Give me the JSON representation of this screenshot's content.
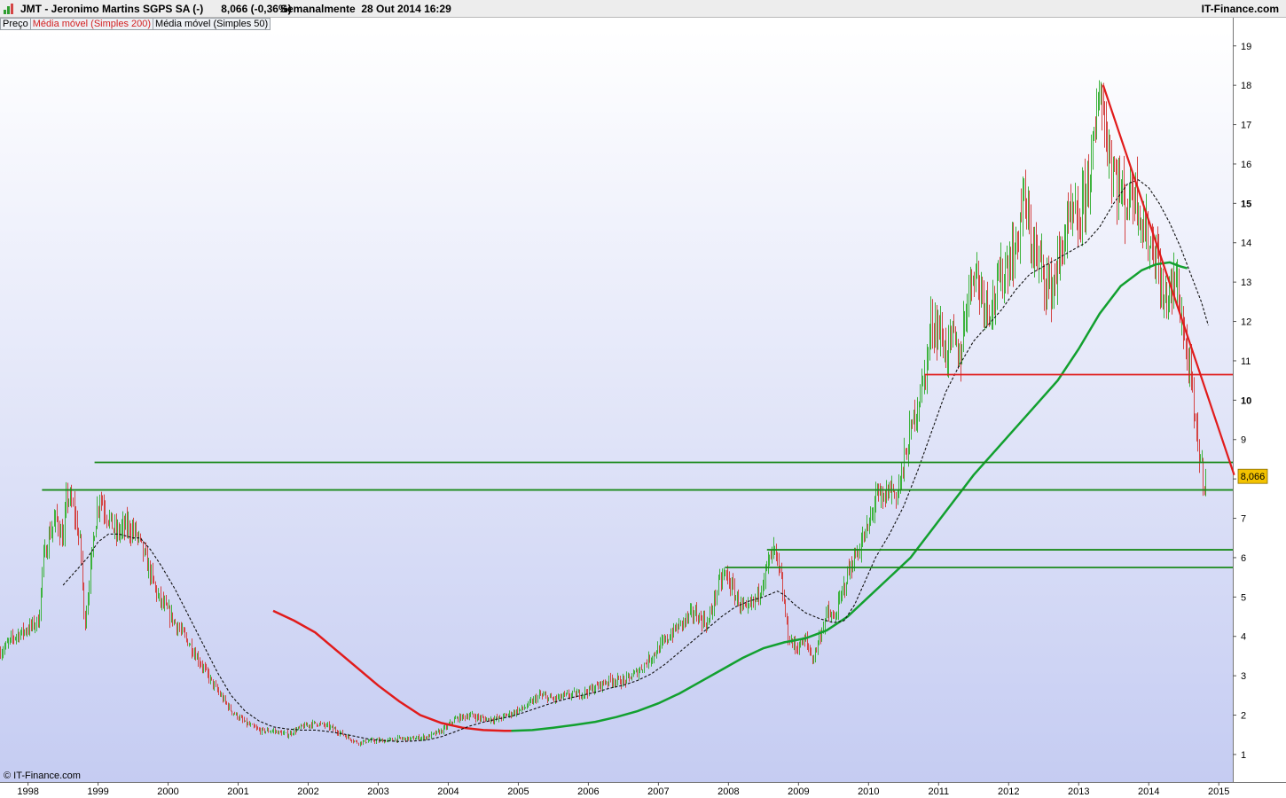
{
  "header": {
    "title": "JMT - Jeronimo Martins SGPS SA (-)      8,066 (-0,36%)",
    "period": "Semanalmente  28 Out 2014 16:29",
    "site": "IT-Finance.com"
  },
  "legend": {
    "price": "Preço",
    "ma200": "Média móvel (Simples 200)",
    "ma50": "Média móvel (Simples 50)"
  },
  "copyright": "© IT-Finance.com",
  "colors": {
    "up": "#3db33d",
    "down": "#d44545",
    "ma200": "#12a02f",
    "ma50": "#111111",
    "trend_red": "#e11b1b",
    "level_green": "#1a8a1a",
    "price_tag": "#f3c200",
    "grad_top": "#ffffff",
    "grad_bottom": "#c5ccf2"
  },
  "chart_data": {
    "type": "candlestick",
    "timeframe": "weekly",
    "x_labels": [
      "1998",
      "1999",
      "2000",
      "2001",
      "2002",
      "2003",
      "2004",
      "2005",
      "2006",
      "2007",
      "2008",
      "2009",
      "2010",
      "2011",
      "2012",
      "2013",
      "2014",
      "2015"
    ],
    "x_range": [
      1997.6,
      2015.2
    ],
    "y_ticks": [
      1,
      2,
      3,
      4,
      5,
      6,
      7,
      8,
      9,
      10,
      11,
      12,
      13,
      14,
      15,
      16,
      17,
      18,
      19
    ],
    "y_bold_ticks": [
      10,
      15
    ],
    "y_range": [
      0.3,
      19.4
    ],
    "last_price": 8.066,
    "last_price_label": "8,066",
    "price_path": [
      [
        1997.6,
        3.6
      ],
      [
        1997.8,
        4.0
      ],
      [
        1998.0,
        4.2
      ],
      [
        1998.15,
        4.4
      ],
      [
        1998.2,
        5.8
      ],
      [
        1998.3,
        6.6
      ],
      [
        1998.4,
        7.0
      ],
      [
        1998.5,
        6.4
      ],
      [
        1998.55,
        7.6
      ],
      [
        1998.65,
        7.2
      ],
      [
        1998.75,
        6.2
      ],
      [
        1998.8,
        4.2
      ],
      [
        1998.95,
        6.8
      ],
      [
        1999.02,
        7.6
      ],
      [
        1999.1,
        7.2
      ],
      [
        1999.25,
        6.6
      ],
      [
        1999.4,
        6.8
      ],
      [
        1999.55,
        6.6
      ],
      [
        1999.7,
        5.8
      ],
      [
        1999.85,
        5.0
      ],
      [
        2000.0,
        4.6
      ],
      [
        2000.15,
        4.2
      ],
      [
        2000.3,
        3.8
      ],
      [
        2000.5,
        3.2
      ],
      [
        2000.7,
        2.6
      ],
      [
        2000.9,
        2.1
      ],
      [
        2001.1,
        1.8
      ],
      [
        2001.3,
        1.6
      ],
      [
        2001.5,
        1.6
      ],
      [
        2001.7,
        1.5
      ],
      [
        2001.9,
        1.7
      ],
      [
        2002.1,
        1.8
      ],
      [
        2002.3,
        1.7
      ],
      [
        2002.5,
        1.5
      ],
      [
        2002.7,
        1.3
      ],
      [
        2002.9,
        1.35
      ],
      [
        2003.1,
        1.35
      ],
      [
        2003.3,
        1.4
      ],
      [
        2003.5,
        1.4
      ],
      [
        2003.7,
        1.45
      ],
      [
        2003.9,
        1.6
      ],
      [
        2004.1,
        1.9
      ],
      [
        2004.3,
        2.0
      ],
      [
        2004.5,
        1.9
      ],
      [
        2004.7,
        1.9
      ],
      [
        2004.9,
        2.05
      ],
      [
        2005.1,
        2.2
      ],
      [
        2005.3,
        2.5
      ],
      [
        2005.5,
        2.4
      ],
      [
        2005.7,
        2.5
      ],
      [
        2005.9,
        2.55
      ],
      [
        2006.1,
        2.7
      ],
      [
        2006.3,
        2.9
      ],
      [
        2006.5,
        2.85
      ],
      [
        2006.7,
        3.1
      ],
      [
        2006.9,
        3.5
      ],
      [
        2007.1,
        3.9
      ],
      [
        2007.3,
        4.3
      ],
      [
        2007.5,
        4.6
      ],
      [
        2007.7,
        4.3
      ],
      [
        2007.85,
        5.3
      ],
      [
        2007.95,
        5.6
      ],
      [
        2008.1,
        5.0
      ],
      [
        2008.25,
        4.6
      ],
      [
        2008.4,
        5.0
      ],
      [
        2008.55,
        5.8
      ],
      [
        2008.65,
        6.2
      ],
      [
        2008.75,
        5.4
      ],
      [
        2008.85,
        4.0
      ],
      [
        2008.95,
        3.7
      ],
      [
        2009.1,
        3.9
      ],
      [
        2009.2,
        3.4
      ],
      [
        2009.3,
        4.0
      ],
      [
        2009.4,
        4.6
      ],
      [
        2009.5,
        4.4
      ],
      [
        2009.6,
        5.0
      ],
      [
        2009.7,
        5.6
      ],
      [
        2009.8,
        6.0
      ],
      [
        2009.9,
        6.4
      ],
      [
        2010.0,
        6.8
      ],
      [
        2010.1,
        7.6
      ],
      [
        2010.2,
        7.4
      ],
      [
        2010.3,
        7.8
      ],
      [
        2010.4,
        7.6
      ],
      [
        2010.5,
        8.4
      ],
      [
        2010.6,
        9.2
      ],
      [
        2010.7,
        10.0
      ],
      [
        2010.8,
        10.6
      ],
      [
        2010.9,
        12.0
      ],
      [
        2011.0,
        11.8
      ],
      [
        2011.1,
        11.2
      ],
      [
        2011.2,
        11.6
      ],
      [
        2011.3,
        11.0
      ],
      [
        2011.4,
        12.6
      ],
      [
        2011.5,
        13.4
      ],
      [
        2011.6,
        12.8
      ],
      [
        2011.7,
        12.4
      ],
      [
        2011.8,
        12.6
      ],
      [
        2011.9,
        13.2
      ],
      [
        2012.0,
        13.6
      ],
      [
        2012.1,
        13.8
      ],
      [
        2012.2,
        15.2
      ],
      [
        2012.3,
        14.2
      ],
      [
        2012.4,
        13.6
      ],
      [
        2012.5,
        13.2
      ],
      [
        2012.6,
        12.8
      ],
      [
        2012.7,
        13.4
      ],
      [
        2012.8,
        14.2
      ],
      [
        2012.9,
        14.6
      ],
      [
        2013.0,
        14.4
      ],
      [
        2013.1,
        15.4
      ],
      [
        2013.2,
        16.2
      ],
      [
        2013.25,
        17.0
      ],
      [
        2013.3,
        18.2
      ],
      [
        2013.38,
        16.8
      ],
      [
        2013.5,
        15.8
      ],
      [
        2013.65,
        15.0
      ],
      [
        2013.8,
        15.4
      ],
      [
        2013.95,
        14.2
      ],
      [
        2014.1,
        13.8
      ],
      [
        2014.2,
        12.4
      ],
      [
        2014.3,
        12.8
      ],
      [
        2014.4,
        13.0
      ],
      [
        2014.5,
        11.6
      ],
      [
        2014.6,
        10.4
      ],
      [
        2014.65,
        9.4
      ],
      [
        2014.72,
        8.6
      ],
      [
        2014.78,
        8.0
      ],
      [
        2014.82,
        8.066
      ]
    ],
    "ma50": [
      [
        1998.5,
        5.3
      ],
      [
        1998.7,
        5.7
      ],
      [
        1998.85,
        6.0
      ],
      [
        1999.0,
        6.4
      ],
      [
        1999.15,
        6.6
      ],
      [
        1999.3,
        6.6
      ],
      [
        1999.5,
        6.5
      ],
      [
        1999.6,
        6.5
      ],
      [
        1999.75,
        6.2
      ],
      [
        1999.9,
        5.8
      ],
      [
        2000.1,
        5.2
      ],
      [
        2000.3,
        4.5
      ],
      [
        2000.5,
        3.8
      ],
      [
        2000.7,
        3.1
      ],
      [
        2000.9,
        2.5
      ],
      [
        2001.1,
        2.1
      ],
      [
        2001.3,
        1.85
      ],
      [
        2001.5,
        1.7
      ],
      [
        2001.7,
        1.65
      ],
      [
        2001.9,
        1.62
      ],
      [
        2002.1,
        1.62
      ],
      [
        2002.3,
        1.58
      ],
      [
        2002.5,
        1.52
      ],
      [
        2002.7,
        1.45
      ],
      [
        2002.9,
        1.38
      ],
      [
        2003.1,
        1.35
      ],
      [
        2003.3,
        1.33
      ],
      [
        2003.5,
        1.34
      ],
      [
        2003.7,
        1.37
      ],
      [
        2003.9,
        1.45
      ],
      [
        2004.1,
        1.58
      ],
      [
        2004.3,
        1.72
      ],
      [
        2004.5,
        1.82
      ],
      [
        2004.7,
        1.9
      ],
      [
        2004.9,
        1.97
      ],
      [
        2005.1,
        2.08
      ],
      [
        2005.3,
        2.2
      ],
      [
        2005.5,
        2.32
      ],
      [
        2005.7,
        2.42
      ],
      [
        2005.9,
        2.5
      ],
      [
        2006.1,
        2.58
      ],
      [
        2006.3,
        2.68
      ],
      [
        2006.5,
        2.76
      ],
      [
        2006.7,
        2.88
      ],
      [
        2006.9,
        3.05
      ],
      [
        2007.1,
        3.3
      ],
      [
        2007.3,
        3.6
      ],
      [
        2007.5,
        3.9
      ],
      [
        2007.7,
        4.2
      ],
      [
        2007.9,
        4.5
      ],
      [
        2008.1,
        4.75
      ],
      [
        2008.3,
        4.9
      ],
      [
        2008.5,
        5.0
      ],
      [
        2008.7,
        5.15
      ],
      [
        2008.8,
        5.05
      ],
      [
        2008.95,
        4.8
      ],
      [
        2009.1,
        4.6
      ],
      [
        2009.3,
        4.45
      ],
      [
        2009.5,
        4.35
      ],
      [
        2009.65,
        4.4
      ],
      [
        2009.8,
        4.8
      ],
      [
        2009.95,
        5.4
      ],
      [
        2010.1,
        6.0
      ],
      [
        2010.3,
        6.6
      ],
      [
        2010.5,
        7.3
      ],
      [
        2010.7,
        8.2
      ],
      [
        2010.9,
        9.2
      ],
      [
        2011.1,
        10.2
      ],
      [
        2011.3,
        10.9
      ],
      [
        2011.5,
        11.5
      ],
      [
        2011.7,
        11.9
      ],
      [
        2011.9,
        12.3
      ],
      [
        2012.1,
        12.8
      ],
      [
        2012.3,
        13.2
      ],
      [
        2012.5,
        13.4
      ],
      [
        2012.7,
        13.6
      ],
      [
        2012.9,
        13.8
      ],
      [
        2013.1,
        14.0
      ],
      [
        2013.3,
        14.4
      ],
      [
        2013.5,
        15.0
      ],
      [
        2013.7,
        15.5
      ],
      [
        2013.85,
        15.6
      ],
      [
        2014.0,
        15.4
      ],
      [
        2014.15,
        15.0
      ],
      [
        2014.3,
        14.5
      ],
      [
        2014.45,
        13.9
      ],
      [
        2014.6,
        13.2
      ],
      [
        2014.75,
        12.5
      ],
      [
        2014.85,
        11.9
      ]
    ],
    "ma200": [
      [
        2004.9,
        1.6
      ],
      [
        2005.2,
        1.62
      ],
      [
        2005.5,
        1.68
      ],
      [
        2005.8,
        1.75
      ],
      [
        2006.1,
        1.83
      ],
      [
        2006.4,
        1.95
      ],
      [
        2006.7,
        2.1
      ],
      [
        2007.0,
        2.3
      ],
      [
        2007.3,
        2.55
      ],
      [
        2007.6,
        2.85
      ],
      [
        2007.9,
        3.15
      ],
      [
        2008.2,
        3.45
      ],
      [
        2008.5,
        3.7
      ],
      [
        2008.8,
        3.85
      ],
      [
        2009.1,
        3.95
      ],
      [
        2009.4,
        4.15
      ],
      [
        2009.7,
        4.5
      ],
      [
        2010.0,
        5.0
      ],
      [
        2010.3,
        5.5
      ],
      [
        2010.6,
        6.0
      ],
      [
        2010.9,
        6.7
      ],
      [
        2011.2,
        7.4
      ],
      [
        2011.5,
        8.1
      ],
      [
        2011.8,
        8.7
      ],
      [
        2012.1,
        9.3
      ],
      [
        2012.4,
        9.9
      ],
      [
        2012.7,
        10.5
      ],
      [
        2013.0,
        11.3
      ],
      [
        2013.3,
        12.2
      ],
      [
        2013.6,
        12.9
      ],
      [
        2013.9,
        13.3
      ],
      [
        2014.1,
        13.45
      ],
      [
        2014.3,
        13.5
      ],
      [
        2014.45,
        13.4
      ],
      [
        2014.55,
        13.35
      ]
    ],
    "ma200_prior_red": [
      [
        2001.5,
        4.65
      ],
      [
        2001.8,
        4.4
      ],
      [
        2002.1,
        4.1
      ],
      [
        2002.4,
        3.65
      ],
      [
        2002.7,
        3.2
      ],
      [
        2003.0,
        2.75
      ],
      [
        2003.3,
        2.35
      ],
      [
        2003.6,
        2.0
      ],
      [
        2003.9,
        1.8
      ],
      [
        2004.2,
        1.68
      ],
      [
        2004.5,
        1.62
      ],
      [
        2004.8,
        1.6
      ],
      [
        2004.9,
        1.6
      ]
    ],
    "levels_green": [
      {
        "y": 8.42,
        "x_start": 1998.95
      },
      {
        "y": 7.72,
        "x_start": 1998.2
      },
      {
        "y": 6.2,
        "x_start": 2008.55
      },
      {
        "y": 5.75,
        "x_start": 2007.95
      }
    ],
    "levels_red": [
      {
        "y": 10.65,
        "x_start": 2010.8
      }
    ],
    "trendline_red": [
      [
        2013.35,
        18.0
      ],
      [
        2015.22,
        8.1
      ]
    ]
  }
}
